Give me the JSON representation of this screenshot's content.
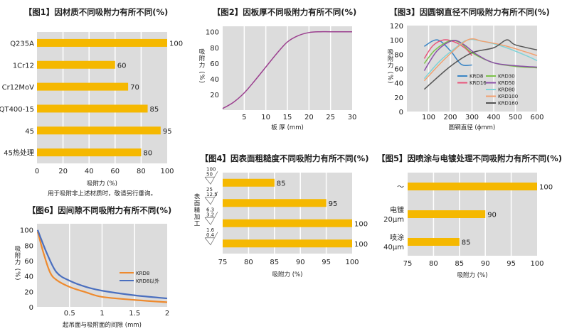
{
  "colors": {
    "plot_bg": "#dcdcdc",
    "grid": "#ffffff",
    "bar": "#f5b800"
  },
  "chart_data": [
    {
      "id": "fig1",
      "type": "bar",
      "orientation": "horizontal",
      "title": "【图1】因材质不同吸附力有所不同(%)",
      "categories": [
        "Q235A",
        "1Cr12",
        "Cr12MoV",
        "QT400-15",
        "45",
        "45热处理"
      ],
      "values": [
        100,
        60,
        70,
        85,
        95,
        80
      ],
      "xlabel": "吸附力 (%)",
      "ylabel": "",
      "note": "用于吸附非上述材质时，敬请另行垂询。",
      "xlim": [
        0,
        100
      ],
      "xticks": [
        0,
        20,
        40,
        60,
        80,
        100
      ],
      "grid": true
    },
    {
      "id": "fig2",
      "type": "line",
      "title": "【图2】因板厚不同吸附力有所不同(%)",
      "xlabel": "板 厚 (mm)",
      "ylabel": "吸附力 (%)",
      "xlim": [
        0,
        30
      ],
      "ylim": [
        0,
        107
      ],
      "xticks": [
        5,
        10,
        15,
        20,
        25,
        30
      ],
      "yticks": [
        20,
        40,
        60,
        80,
        100
      ],
      "grid": true,
      "series": [
        {
          "color": "#9b3f8f",
          "x": [
            0,
            2.5,
            5,
            7.5,
            10,
            12.5,
            15,
            17.5,
            20,
            22.5,
            25,
            30
          ],
          "y": [
            2,
            10,
            22,
            38,
            55,
            72,
            87,
            95,
            99,
            100,
            100,
            100
          ]
        }
      ]
    },
    {
      "id": "fig3",
      "type": "line",
      "title": "【图3】因圆钢直径不同吸附力有所不同(%)",
      "xlabel": "圆钢直径 (ϕmm)",
      "ylabel": "吸附力 (%)",
      "xlim": [
        0,
        600
      ],
      "ylim": [
        0,
        120
      ],
      "xticks": [
        100,
        200,
        300,
        400,
        500,
        600
      ],
      "yticks": [
        0,
        20,
        40,
        60,
        80,
        100,
        120
      ],
      "grid": true,
      "legend": "bottom-inside",
      "series": [
        {
          "name": "KRD8",
          "color": "#3a85c5",
          "x": [
            80,
            140,
            200,
            250,
            300
          ],
          "y": [
            91,
            100,
            85,
            66,
            65
          ]
        },
        {
          "name": "KRD16",
          "color": "#e8557a",
          "x": [
            80,
            120,
            170,
            220,
            270,
            300
          ],
          "y": [
            74,
            92,
            100,
            97,
            88,
            78
          ]
        },
        {
          "name": "KRD30",
          "color": "#7cc24a",
          "x": [
            80,
            130,
            200,
            250,
            300,
            400,
            500,
            600
          ],
          "y": [
            67,
            86,
            99,
            95,
            82,
            68,
            63,
            61
          ]
        },
        {
          "name": "KRD50",
          "color": "#8a4ea8",
          "x": [
            80,
            140,
            210,
            260,
            320,
            400,
            500,
            600
          ],
          "y": [
            57,
            85,
            99,
            94,
            80,
            68,
            64,
            62
          ]
        },
        {
          "name": "KRD80",
          "color": "#7fd3d8",
          "x": [
            80,
            150,
            220,
            280,
            350,
            450,
            550,
            600
          ],
          "y": [
            46,
            70,
            88,
            100,
            98,
            90,
            78,
            71
          ]
        },
        {
          "name": "KRD100",
          "color": "#f2a070",
          "x": [
            80,
            180,
            280,
            350,
            450,
            550,
            600
          ],
          "y": [
            43,
            75,
            100,
            98,
            92,
            83,
            78
          ]
        },
        {
          "name": "KRD160",
          "color": "#555555",
          "x": [
            80,
            200,
            300,
            400,
            460,
            500,
            600
          ],
          "y": [
            31,
            63,
            82,
            89,
            100,
            93,
            86
          ]
        }
      ]
    },
    {
      "id": "fig4",
      "type": "bar",
      "orientation": "horizontal",
      "title": "【图4】因表面粗糙度不同吸附力有所不同(%)",
      "categories": [
        [
          "100",
          "50"
        ],
        [
          "25",
          "12.5"
        ],
        [
          "6.3",
          "3.2"
        ],
        [
          "1.6",
          "0.4"
        ]
      ],
      "values": [
        85,
        95,
        100,
        100
      ],
      "xlabel": "吸附力 (%)",
      "ylabel": "表面精加工",
      "xlim": [
        75,
        100
      ],
      "xticks": [
        75,
        80,
        85,
        90,
        95,
        100
      ],
      "grid": true
    },
    {
      "id": "fig5",
      "type": "bar",
      "orientation": "horizontal",
      "title": "【图5】因喷涂与电镀处理不同吸附力有所不同(%)",
      "categories": [
        [
          "～"
        ],
        [
          "电镀",
          "20μm"
        ],
        [
          "喷涂",
          "40μm"
        ]
      ],
      "values": [
        100,
        90,
        85
      ],
      "xlabel": "吸附力 (%)",
      "ylabel": "",
      "xlim": [
        75,
        100
      ],
      "xticks": [
        75,
        80,
        85,
        90,
        95,
        100
      ],
      "grid": true
    },
    {
      "id": "fig6",
      "type": "line",
      "title": "【图6】因间隙不同吸附力有所不同(%)",
      "xlabel": "起吊面与吸附面的间隙 (mm)",
      "ylabel": "吸附力 (%)",
      "xlim": [
        0,
        2
      ],
      "ylim": [
        0,
        108
      ],
      "xticks": [
        0.5,
        1,
        1.5,
        2
      ],
      "yticks": [
        0,
        20,
        40,
        60,
        80,
        100
      ],
      "grid": true,
      "legend": "right-inside",
      "series": [
        {
          "name": "KRD8",
          "color": "#ee8a2e",
          "x": [
            0.01,
            0.1,
            0.2,
            0.3,
            0.5,
            0.75,
            1,
            1.5,
            2
          ],
          "y": [
            98,
            70,
            45,
            35,
            26,
            19,
            13,
            9,
            6
          ]
        },
        {
          "name": "KRD8以外",
          "color": "#4a6fbf",
          "x": [
            0.01,
            0.15,
            0.3,
            0.5,
            0.75,
            1,
            1.5,
            2
          ],
          "y": [
            100,
            70,
            45,
            34,
            26,
            21,
            15,
            11
          ]
        }
      ]
    }
  ]
}
